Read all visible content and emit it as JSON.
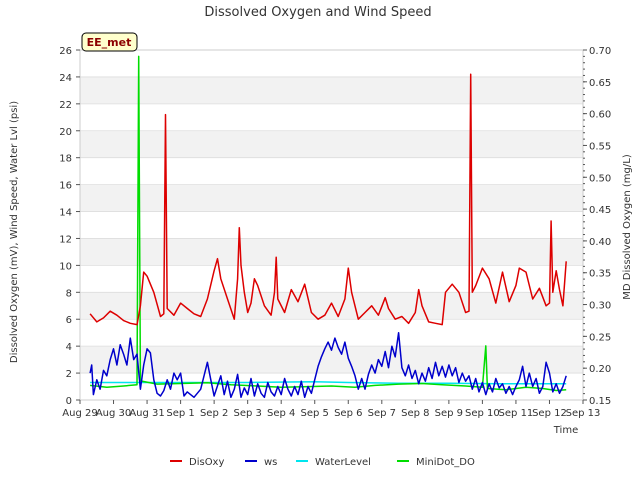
{
  "chart_data": {
    "type": "line",
    "title": "Dissolved Oxygen and Wind Speed",
    "badge": "EE_met",
    "xlabel": "Time",
    "ylabel_left": "Dissolved Oxygen (mV), Wind Speed, Water Lvl (psi)",
    "ylabel_right": "MD Dissolved Oxygen (mg/L)",
    "x_ticks": [
      "Aug 29",
      "Aug 30",
      "Aug 31",
      "Sep 1",
      "Sep 2",
      "Sep 3",
      "Sep 4",
      "Sep 5",
      "Sep 6",
      "Sep 7",
      "Sep 8",
      "Sep 9",
      "Sep 10",
      "Sep 11",
      "Sep 12",
      "Sep 13"
    ],
    "xlim_days": [
      0,
      15
    ],
    "ylim_left": [
      0,
      26
    ],
    "y_ticks_left": [
      "0",
      "2",
      "4",
      "6",
      "8",
      "10",
      "12",
      "14",
      "16",
      "18",
      "20",
      "22",
      "24",
      "26"
    ],
    "ylim_right": [
      0.15,
      0.7
    ],
    "y_ticks_right": [
      "0.15",
      "0.20",
      "0.25",
      "0.30",
      "0.35",
      "0.40",
      "0.45",
      "0.50",
      "0.55",
      "0.60",
      "0.65",
      "0.70"
    ],
    "grid": "horizontal bands",
    "legend_position": "bottom",
    "series": [
      {
        "name": "DisOxy",
        "color": "#dd0000",
        "axis": "left",
        "points": [
          [
            0.3,
            6.4
          ],
          [
            0.5,
            5.8
          ],
          [
            0.7,
            6.1
          ],
          [
            0.9,
            6.6
          ],
          [
            1.1,
            6.3
          ],
          [
            1.3,
            5.9
          ],
          [
            1.5,
            5.7
          ],
          [
            1.7,
            5.6
          ],
          [
            1.8,
            7.0
          ],
          [
            1.9,
            9.5
          ],
          [
            2.0,
            9.2
          ],
          [
            2.2,
            8.0
          ],
          [
            2.4,
            6.2
          ],
          [
            2.5,
            6.4
          ],
          [
            2.55,
            21.2
          ],
          [
            2.6,
            6.8
          ],
          [
            2.8,
            6.3
          ],
          [
            3.0,
            7.2
          ],
          [
            3.2,
            6.8
          ],
          [
            3.4,
            6.4
          ],
          [
            3.6,
            6.2
          ],
          [
            3.8,
            7.5
          ],
          [
            4.0,
            9.6
          ],
          [
            4.1,
            10.5
          ],
          [
            4.2,
            9.0
          ],
          [
            4.4,
            7.5
          ],
          [
            4.6,
            6.0
          ],
          [
            4.7,
            9.0
          ],
          [
            4.75,
            12.8
          ],
          [
            4.8,
            10.0
          ],
          [
            4.9,
            8.0
          ],
          [
            5.0,
            6.5
          ],
          [
            5.1,
            7.2
          ],
          [
            5.2,
            9.0
          ],
          [
            5.3,
            8.5
          ],
          [
            5.5,
            7.0
          ],
          [
            5.7,
            6.3
          ],
          [
            5.8,
            8.0
          ],
          [
            5.85,
            10.6
          ],
          [
            5.9,
            7.5
          ],
          [
            6.1,
            6.5
          ],
          [
            6.3,
            8.2
          ],
          [
            6.5,
            7.3
          ],
          [
            6.7,
            8.6
          ],
          [
            6.9,
            6.5
          ],
          [
            7.1,
            6.0
          ],
          [
            7.3,
            6.3
          ],
          [
            7.5,
            7.2
          ],
          [
            7.7,
            6.2
          ],
          [
            7.9,
            7.5
          ],
          [
            8.0,
            9.8
          ],
          [
            8.1,
            8.0
          ],
          [
            8.3,
            6.0
          ],
          [
            8.5,
            6.5
          ],
          [
            8.7,
            7.0
          ],
          [
            8.9,
            6.3
          ],
          [
            9.1,
            7.6
          ],
          [
            9.2,
            6.8
          ],
          [
            9.4,
            6.0
          ],
          [
            9.6,
            6.2
          ],
          [
            9.8,
            5.7
          ],
          [
            10.0,
            6.5
          ],
          [
            10.1,
            8.2
          ],
          [
            10.2,
            7.0
          ],
          [
            10.4,
            5.8
          ],
          [
            10.6,
            5.7
          ],
          [
            10.8,
            5.6
          ],
          [
            10.9,
            8.0
          ],
          [
            11.1,
            8.6
          ],
          [
            11.3,
            8.0
          ],
          [
            11.5,
            6.5
          ],
          [
            11.6,
            6.6
          ],
          [
            11.65,
            24.2
          ],
          [
            11.7,
            8.0
          ],
          [
            11.8,
            8.5
          ],
          [
            12.0,
            9.8
          ],
          [
            12.2,
            9.0
          ],
          [
            12.4,
            7.2
          ],
          [
            12.6,
            9.5
          ],
          [
            12.8,
            7.3
          ],
          [
            13.0,
            8.5
          ],
          [
            13.1,
            9.8
          ],
          [
            13.3,
            9.5
          ],
          [
            13.5,
            7.5
          ],
          [
            13.7,
            8.3
          ],
          [
            13.9,
            7.0
          ],
          [
            14.0,
            7.2
          ],
          [
            14.05,
            13.3
          ],
          [
            14.1,
            8.0
          ],
          [
            14.2,
            9.6
          ],
          [
            14.3,
            8.2
          ],
          [
            14.4,
            7.0
          ],
          [
            14.5,
            10.3
          ]
        ]
      },
      {
        "name": "ws",
        "color": "#0000cc",
        "axis": "left",
        "points": [
          [
            0.3,
            2.0
          ],
          [
            0.35,
            2.6
          ],
          [
            0.4,
            0.4
          ],
          [
            0.5,
            1.5
          ],
          [
            0.6,
            0.8
          ],
          [
            0.7,
            2.2
          ],
          [
            0.8,
            1.8
          ],
          [
            0.9,
            3.0
          ],
          [
            1.0,
            3.8
          ],
          [
            1.1,
            2.6
          ],
          [
            1.2,
            4.1
          ],
          [
            1.3,
            3.4
          ],
          [
            1.4,
            2.6
          ],
          [
            1.5,
            4.6
          ],
          [
            1.6,
            3.0
          ],
          [
            1.7,
            3.4
          ],
          [
            1.8,
            0.8
          ],
          [
            1.9,
            2.6
          ],
          [
            2.0,
            3.8
          ],
          [
            2.1,
            3.5
          ],
          [
            2.2,
            1.5
          ],
          [
            2.3,
            0.5
          ],
          [
            2.4,
            0.3
          ],
          [
            2.5,
            0.7
          ],
          [
            2.6,
            1.5
          ],
          [
            2.7,
            0.8
          ],
          [
            2.8,
            2.0
          ],
          [
            2.9,
            1.5
          ],
          [
            3.0,
            2.0
          ],
          [
            3.1,
            0.3
          ],
          [
            3.2,
            0.6
          ],
          [
            3.4,
            0.2
          ],
          [
            3.6,
            0.8
          ],
          [
            3.8,
            2.8
          ],
          [
            3.9,
            1.5
          ],
          [
            4.0,
            0.3
          ],
          [
            4.2,
            1.8
          ],
          [
            4.3,
            0.4
          ],
          [
            4.4,
            1.4
          ],
          [
            4.5,
            0.2
          ],
          [
            4.6,
            0.8
          ],
          [
            4.7,
            1.9
          ],
          [
            4.8,
            0.2
          ],
          [
            4.9,
            0.9
          ],
          [
            5.0,
            0.4
          ],
          [
            5.1,
            1.6
          ],
          [
            5.2,
            0.3
          ],
          [
            5.3,
            1.2
          ],
          [
            5.4,
            0.5
          ],
          [
            5.5,
            0.2
          ],
          [
            5.6,
            1.3
          ],
          [
            5.7,
            0.6
          ],
          [
            5.8,
            0.3
          ],
          [
            5.9,
            1.0
          ],
          [
            6.0,
            0.4
          ],
          [
            6.1,
            1.6
          ],
          [
            6.2,
            0.8
          ],
          [
            6.3,
            0.3
          ],
          [
            6.4,
            1.0
          ],
          [
            6.5,
            0.4
          ],
          [
            6.6,
            1.4
          ],
          [
            6.7,
            0.2
          ],
          [
            6.8,
            1.0
          ],
          [
            6.9,
            0.5
          ],
          [
            7.0,
            1.5
          ],
          [
            7.1,
            2.5
          ],
          [
            7.2,
            3.2
          ],
          [
            7.3,
            3.8
          ],
          [
            7.4,
            4.3
          ],
          [
            7.5,
            3.7
          ],
          [
            7.6,
            4.6
          ],
          [
            7.7,
            3.9
          ],
          [
            7.8,
            3.4
          ],
          [
            7.9,
            4.3
          ],
          [
            8.0,
            3.1
          ],
          [
            8.1,
            2.5
          ],
          [
            8.2,
            1.8
          ],
          [
            8.3,
            0.8
          ],
          [
            8.4,
            1.6
          ],
          [
            8.5,
            0.8
          ],
          [
            8.6,
            1.9
          ],
          [
            8.7,
            2.6
          ],
          [
            8.8,
            2.0
          ],
          [
            8.9,
            3.0
          ],
          [
            9.0,
            2.5
          ],
          [
            9.1,
            3.6
          ],
          [
            9.2,
            2.4
          ],
          [
            9.3,
            4.0
          ],
          [
            9.4,
            3.2
          ],
          [
            9.5,
            5.0
          ],
          [
            9.6,
            2.4
          ],
          [
            9.7,
            1.8
          ],
          [
            9.8,
            2.6
          ],
          [
            9.9,
            1.6
          ],
          [
            10.0,
            2.2
          ],
          [
            10.1,
            1.2
          ],
          [
            10.2,
            2.0
          ],
          [
            10.3,
            1.4
          ],
          [
            10.4,
            2.4
          ],
          [
            10.5,
            1.6
          ],
          [
            10.6,
            2.8
          ],
          [
            10.7,
            1.8
          ],
          [
            10.8,
            2.5
          ],
          [
            10.9,
            1.7
          ],
          [
            11.0,
            2.6
          ],
          [
            11.1,
            1.8
          ],
          [
            11.2,
            2.4
          ],
          [
            11.3,
            1.3
          ],
          [
            11.4,
            2.0
          ],
          [
            11.5,
            1.4
          ],
          [
            11.6,
            1.8
          ],
          [
            11.7,
            0.8
          ],
          [
            11.8,
            1.6
          ],
          [
            11.9,
            0.6
          ],
          [
            12.0,
            1.3
          ],
          [
            12.1,
            0.4
          ],
          [
            12.2,
            1.2
          ],
          [
            12.3,
            0.6
          ],
          [
            12.4,
            1.6
          ],
          [
            12.5,
            0.9
          ],
          [
            12.6,
            1.2
          ],
          [
            12.7,
            0.5
          ],
          [
            12.8,
            1.0
          ],
          [
            12.9,
            0.4
          ],
          [
            13.0,
            1.0
          ],
          [
            13.1,
            1.5
          ],
          [
            13.2,
            2.5
          ],
          [
            13.3,
            1.0
          ],
          [
            13.4,
            2.0
          ],
          [
            13.5,
            1.0
          ],
          [
            13.6,
            1.6
          ],
          [
            13.7,
            0.5
          ],
          [
            13.8,
            1.0
          ],
          [
            13.9,
            2.8
          ],
          [
            14.0,
            2.0
          ],
          [
            14.1,
            0.6
          ],
          [
            14.2,
            1.2
          ],
          [
            14.3,
            0.5
          ],
          [
            14.4,
            1.0
          ],
          [
            14.5,
            1.8
          ]
        ]
      },
      {
        "name": "WaterLevel",
        "color": "#00e5ee",
        "axis": "left",
        "points": [
          [
            0.3,
            1.3
          ],
          [
            2.0,
            1.3
          ],
          [
            3.5,
            1.3
          ],
          [
            5.0,
            1.3
          ],
          [
            7.0,
            1.35
          ],
          [
            8.0,
            1.3
          ],
          [
            9.5,
            1.25
          ],
          [
            11.0,
            1.25
          ],
          [
            12.5,
            1.2
          ],
          [
            14.5,
            1.2
          ]
        ]
      },
      {
        "name": "MiniDot_DO",
        "color": "#00dd00",
        "axis": "right",
        "points": [
          [
            0.3,
            0.173
          ],
          [
            0.8,
            0.17
          ],
          [
            1.3,
            0.172
          ],
          [
            1.7,
            0.174
          ],
          [
            1.75,
            0.69
          ],
          [
            1.8,
            0.18
          ],
          [
            2.3,
            0.175
          ],
          [
            3.0,
            0.176
          ],
          [
            3.8,
            0.177
          ],
          [
            4.5,
            0.174
          ],
          [
            5.3,
            0.172
          ],
          [
            6.0,
            0.17
          ],
          [
            6.8,
            0.171
          ],
          [
            7.5,
            0.172
          ],
          [
            8.2,
            0.17
          ],
          [
            8.8,
            0.173
          ],
          [
            9.5,
            0.175
          ],
          [
            10.2,
            0.176
          ],
          [
            10.8,
            0.174
          ],
          [
            11.5,
            0.172
          ],
          [
            12.0,
            0.17
          ],
          [
            12.1,
            0.235
          ],
          [
            12.15,
            0.168
          ],
          [
            12.7,
            0.166
          ],
          [
            13.3,
            0.17
          ],
          [
            13.8,
            0.168
          ],
          [
            14.2,
            0.165
          ],
          [
            14.5,
            0.166
          ]
        ]
      }
    ]
  }
}
